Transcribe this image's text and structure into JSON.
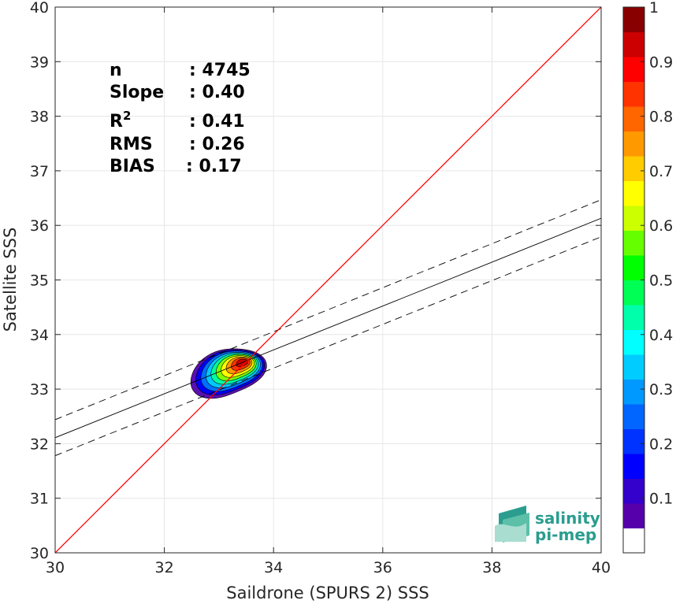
{
  "chart_data": {
    "type": "scatter",
    "subtype": "density-contour",
    "title": "",
    "xlabel": "Saildrone (SPURS 2) SSS",
    "ylabel": "Satellite SSS",
    "xlim": [
      30,
      40
    ],
    "ylim": [
      30,
      40
    ],
    "xticks": [
      "30",
      "32",
      "34",
      "36",
      "38",
      "40"
    ],
    "yticks": [
      "30",
      "31",
      "32",
      "33",
      "34",
      "35",
      "36",
      "37",
      "38",
      "39",
      "40"
    ],
    "grid": true,
    "stats": [
      {
        "label": "n",
        "sep": ":",
        "value": "4745"
      },
      {
        "label": "Slope",
        "sep": ":",
        "value": "0.40"
      },
      {
        "label": "R",
        "sup": "2",
        "sep": ":",
        "value": "0.41"
      },
      {
        "label": "RMS",
        "sep": ":",
        "value": "0.26"
      },
      {
        "label": "BIAS",
        "sep": ":",
        "value": "0.17"
      }
    ],
    "lines": {
      "identity": {
        "x": [
          30,
          40
        ],
        "y": [
          30,
          40
        ],
        "color": "#ff0000"
      },
      "fit": {
        "x": [
          30,
          40
        ],
        "y": [
          32.11,
          36.13
        ],
        "color": "#000000"
      },
      "fit_upper": {
        "x": [
          30,
          40
        ],
        "y": [
          32.44,
          36.47
        ],
        "color": "#000000",
        "dash": true
      },
      "fit_lower": {
        "x": [
          30,
          40
        ],
        "y": [
          31.78,
          35.79
        ],
        "color": "#000000",
        "dash": true
      }
    },
    "density_center": {
      "x": 33.15,
      "y": 33.3
    },
    "density_peak": {
      "x": 33.45,
      "y": 33.5
    },
    "density_levels": [
      {
        "level": 0.05,
        "color": "#5a10b0"
      },
      {
        "level": 0.15,
        "color": "#0000ff"
      },
      {
        "level": 0.25,
        "color": "#0070ff"
      },
      {
        "level": 0.35,
        "color": "#00c8ff"
      },
      {
        "level": 0.45,
        "color": "#00ffa0"
      },
      {
        "level": 0.55,
        "color": "#7fff00"
      },
      {
        "level": 0.65,
        "color": "#ffff00"
      },
      {
        "level": 0.75,
        "color": "#ff9900"
      },
      {
        "level": 0.85,
        "color": "#ff3300"
      },
      {
        "level": 0.95,
        "color": "#cc0000"
      }
    ],
    "colorbar": {
      "min": 0,
      "max": 1,
      "tick_labels": [
        "0.1",
        "0.2",
        "0.3",
        "0.4",
        "0.5",
        "0.6",
        "0.7",
        "0.8",
        "0.9",
        "1"
      ],
      "colors": [
        "#ffffff",
        "#5500aa",
        "#3300cc",
        "#0000ff",
        "#0033ff",
        "#0066ff",
        "#0099ff",
        "#00ccff",
        "#00ffff",
        "#00ffaa",
        "#00ff55",
        "#00ff00",
        "#66ff00",
        "#ccff00",
        "#ffff00",
        "#ffcc00",
        "#ff9900",
        "#ff6600",
        "#ff3300",
        "#ff0000",
        "#cc0000",
        "#880000"
      ]
    }
  },
  "logo": {
    "line1": "salinity",
    "line2": "pi-mep",
    "color": "#2a9d8f"
  }
}
